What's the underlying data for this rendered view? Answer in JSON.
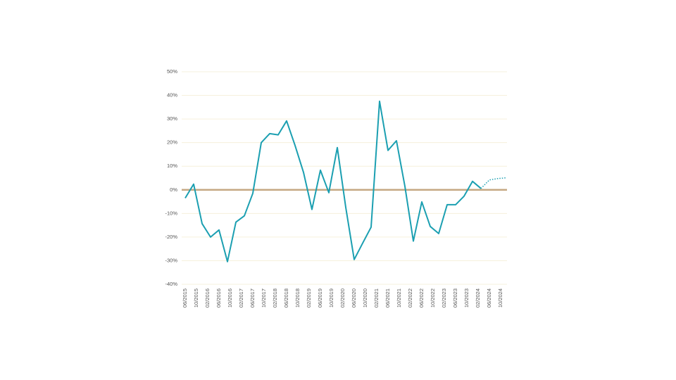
{
  "chart_data": {
    "type": "line",
    "x": [
      "06/2015",
      "09/2015",
      "12/2015",
      "03/2016",
      "06/2016",
      "09/2016",
      "12/2016",
      "03/2017",
      "06/2017",
      "09/2017",
      "12/2017",
      "03/2018",
      "06/2018",
      "09/2018",
      "12/2018",
      "03/2019",
      "06/2019",
      "09/2019",
      "12/2019",
      "03/2020",
      "06/2020",
      "09/2020",
      "12/2020",
      "03/2021",
      "06/2021",
      "09/2021",
      "12/2021",
      "03/2022",
      "06/2022",
      "09/2022",
      "12/2022",
      "03/2023",
      "06/2023",
      "09/2023",
      "12/2023",
      "03/2024",
      "06/2024",
      "09/2024",
      "12/2024"
    ],
    "series": [
      {
        "color": "#1b9fb1",
        "style": "solid",
        "values": [
          -3.5,
          2.4,
          -14.3,
          -20,
          -17,
          -30.4,
          -13.7,
          -11,
          -1.5,
          20,
          23.8,
          23.3,
          29.2,
          18.8,
          7.4,
          -8.3,
          8.3,
          -1.2,
          17.9,
          -7.4,
          -29.5,
          -22.6,
          -15.8,
          37.5,
          16.7,
          20.8,
          1.5,
          -21.7,
          -5.1,
          -15.5,
          -18.5,
          -6.3,
          -6.3,
          -2.7,
          3.6,
          0.6,
          null,
          null,
          null
        ]
      },
      {
        "color": "#1b9fb1",
        "style": "dotted",
        "values": [
          null,
          null,
          null,
          null,
          null,
          null,
          null,
          null,
          null,
          null,
          null,
          null,
          null,
          null,
          null,
          null,
          null,
          null,
          null,
          null,
          null,
          null,
          null,
          null,
          null,
          null,
          null,
          null,
          null,
          null,
          null,
          null,
          null,
          null,
          null,
          0.6,
          4.2,
          4.8,
          5.1
        ]
      }
    ],
    "xlim": [
      "06/2015",
      "12/2024"
    ],
    "xticks": [
      "06/2015",
      "10/2015",
      "02/2016",
      "06/2016",
      "10/2016",
      "02/2017",
      "06/2017",
      "10/2017",
      "02/2018",
      "06/2018",
      "10/2018",
      "02/2019",
      "06/2019",
      "10/2019",
      "02/2020",
      "06/2020",
      "10/2020",
      "02/2021",
      "06/2021",
      "10/2021",
      "02/2022",
      "06/2022",
      "10/2022",
      "02/2023",
      "06/2023",
      "10/2023",
      "02/2024",
      "06/2024",
      "10/2024"
    ],
    "ylim": [
      -40,
      50
    ],
    "yticks": [
      {
        "value": -40,
        "label": "-40%"
      },
      {
        "value": -30,
        "label": "-30%"
      },
      {
        "value": -20,
        "label": "-20%"
      },
      {
        "value": -10,
        "label": "-10%"
      },
      {
        "value": 0,
        "label": "0%"
      },
      {
        "value": 10,
        "label": "10%"
      },
      {
        "value": 20,
        "label": "20%"
      },
      {
        "value": 30,
        "label": "30%"
      },
      {
        "value": 40,
        "label": "40%"
      },
      {
        "value": 50,
        "label": "50%"
      }
    ],
    "grid": true,
    "zero_line_color": "#c5a883"
  }
}
